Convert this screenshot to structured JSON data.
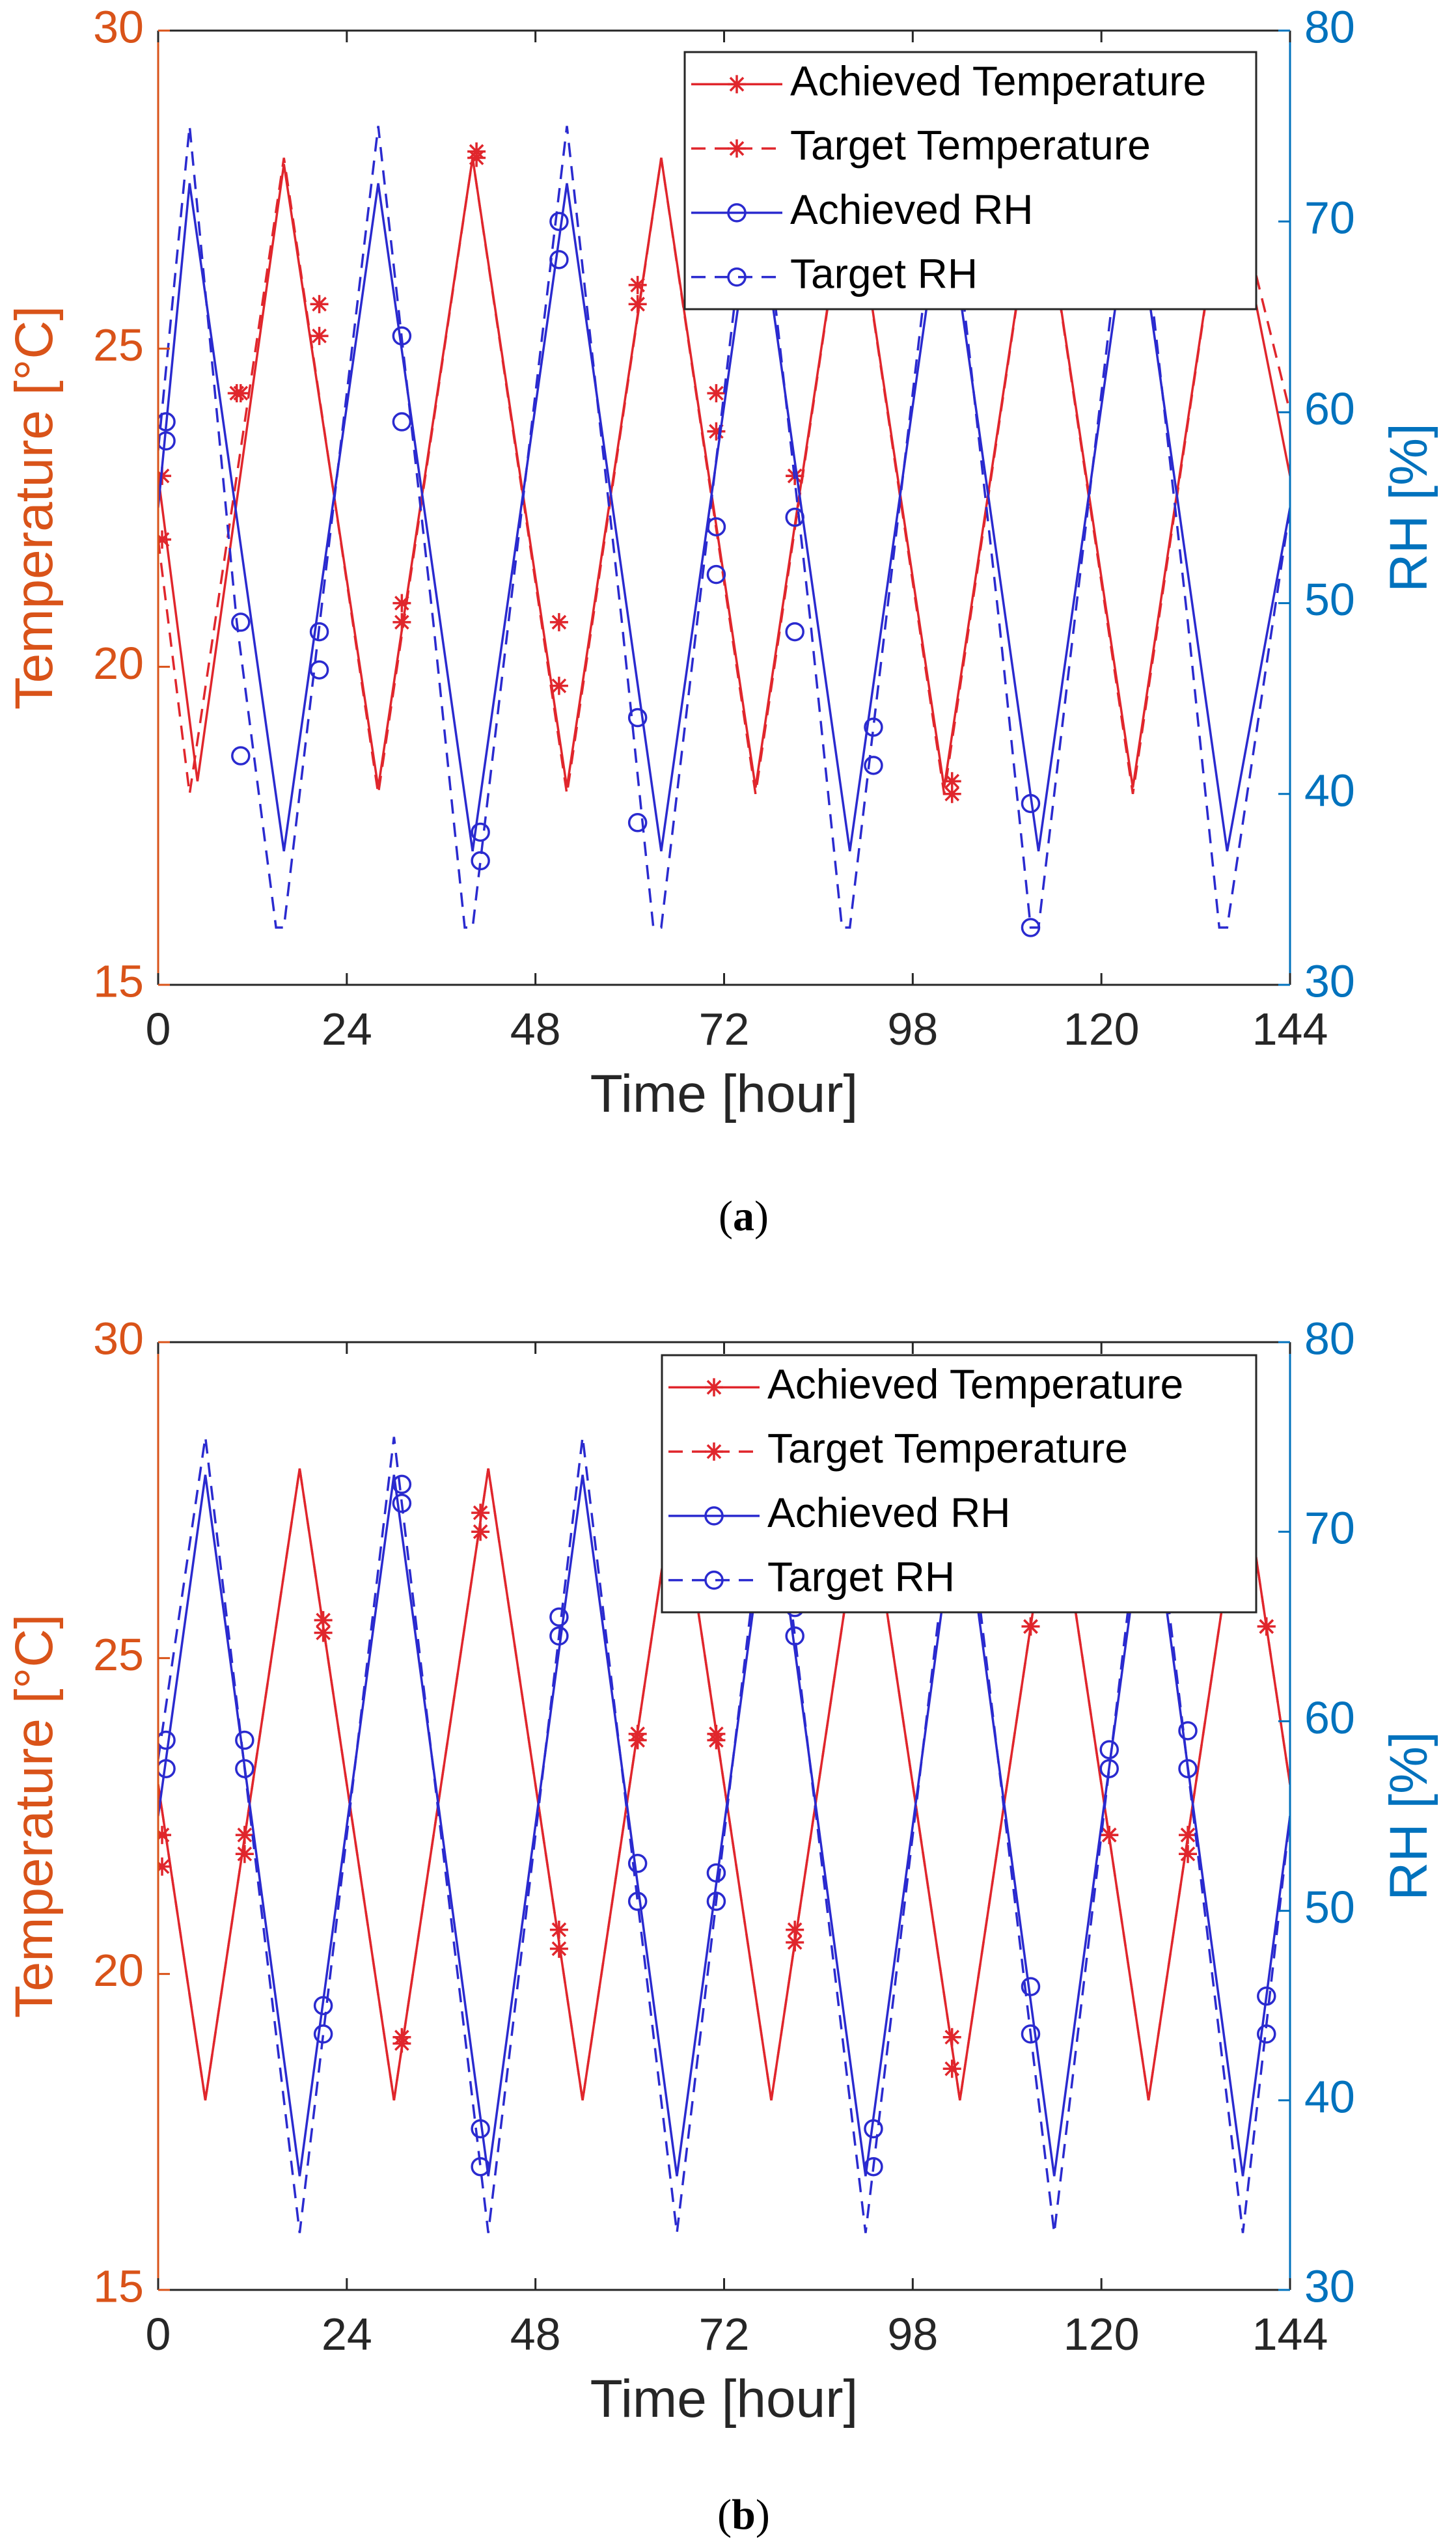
{
  "colors": {
    "left_axis": "#D95319",
    "right_axis": "#0072BD",
    "temperature": "#E0262C",
    "rh": "#2A2ACF"
  },
  "chart_data": [
    {
      "type": "line",
      "caption": {
        "open": "(",
        "letter": "a",
        "close": ")"
      },
      "xlabel": "Time [hour]",
      "ylabel_left": "Temperature [°C]",
      "ylabel_right": "RH [%]",
      "xlim": [
        0,
        144
      ],
      "ylim_left": [
        15,
        30
      ],
      "ylim_right": [
        30,
        80
      ],
      "x_ticks": [
        "0",
        "24",
        "48",
        "72",
        "98",
        "120",
        "144"
      ],
      "y_left_ticks": [
        "15",
        "20",
        "25",
        "30"
      ],
      "y_right_ticks": [
        "30",
        "40",
        "50",
        "60",
        "70",
        "80"
      ],
      "legend": [
        "Achieved Temperature",
        "Target Temperature",
        "Achieved RH",
        "Target RH"
      ],
      "series": [
        {
          "name": "Achieved Temperature",
          "axis": "left",
          "style": "solid",
          "marker": "star",
          "x": [
            0,
            5,
            16,
            28,
            40,
            52,
            64,
            76,
            88,
            100,
            112,
            124,
            136,
            144
          ],
          "y": [
            23.0,
            18.2,
            27.9,
            18.1,
            28.0,
            18.1,
            28.0,
            18.1,
            28.0,
            18.1,
            28.0,
            18.1,
            28.0,
            23.0
          ],
          "marker_x": [
            0.5,
            10.5,
            20.5,
            31,
            40.5,
            51,
            61,
            71,
            81,
            101
          ],
          "marker_y": [
            22.0,
            24.3,
            25.7,
            21.0,
            28.0,
            20.7,
            26.0,
            24.3,
            23.0,
            18.2
          ]
        },
        {
          "name": "Target Temperature",
          "axis": "left",
          "style": "dashed",
          "marker": "star",
          "x": [
            0,
            4,
            16,
            28,
            40,
            52,
            64,
            76,
            88,
            100,
            112,
            124,
            136,
            144
          ],
          "y": [
            22.0,
            18.0,
            28.0,
            18.0,
            28.0,
            18.0,
            28.0,
            18.0,
            28.0,
            18.0,
            28.0,
            18.0,
            28.0,
            24.0
          ],
          "marker_x": [
            0.5,
            10,
            20.5,
            31,
            40.5,
            51,
            61,
            71,
            81,
            101
          ],
          "marker_y": [
            23.0,
            24.3,
            25.2,
            20.7,
            28.1,
            19.7,
            25.7,
            23.7,
            23.0,
            18.0
          ]
        },
        {
          "name": "Achieved RH",
          "axis": "right",
          "style": "solid",
          "marker": "circle",
          "x": [
            0,
            4,
            16,
            28,
            40,
            52,
            64,
            76,
            88,
            100,
            112,
            124,
            136,
            144
          ],
          "y": [
            55,
            72,
            37,
            72,
            37,
            72,
            37,
            72,
            37,
            72,
            37,
            72,
            37,
            55
          ],
          "marker_x": [
            1,
            10.5,
            20.5,
            31,
            41,
            51,
            61,
            71,
            81,
            91,
            111
          ],
          "marker_y": [
            59.5,
            49,
            48.5,
            64,
            38,
            70,
            44,
            54,
            54.5,
            43.5,
            39.5
          ]
        },
        {
          "name": "Target RH",
          "axis": "right",
          "style": "dashed",
          "marker": "circle",
          "x": [
            0,
            4,
            10,
            15,
            16,
            28,
            35,
            39,
            40,
            52,
            59,
            63,
            64,
            76,
            83,
            87,
            88,
            100,
            107,
            111,
            112,
            124,
            131,
            135,
            136,
            144
          ],
          "y": [
            58,
            75,
            49,
            33,
            33,
            75,
            49,
            33,
            33,
            75,
            49,
            33,
            33,
            75,
            49,
            33,
            33,
            75,
            49,
            33,
            33,
            75,
            49,
            33,
            33,
            55
          ],
          "marker_x": [
            1,
            10.5,
            20.5,
            31,
            41,
            51,
            61,
            71,
            81,
            91,
            111
          ],
          "marker_y": [
            58.5,
            42,
            46.5,
            59.5,
            36.5,
            68,
            38.5,
            51.5,
            48.5,
            41.5,
            33
          ]
        }
      ]
    },
    {
      "type": "line",
      "caption": {
        "open": "(",
        "letter": "b",
        "close": ")"
      },
      "xlabel": "Time [hour]",
      "ylabel_left": "Temperature [°C]",
      "ylabel_right": "RH [%]",
      "xlim": [
        0,
        144
      ],
      "ylim_left": [
        15,
        30
      ],
      "ylim_right": [
        30,
        80
      ],
      "x_ticks": [
        "0",
        "24",
        "48",
        "72",
        "98",
        "120",
        "144"
      ],
      "y_left_ticks": [
        "15",
        "20",
        "25",
        "30"
      ],
      "y_right_ticks": [
        "30",
        "40",
        "50",
        "60",
        "70",
        "80"
      ],
      "legend": [
        "Achieved Temperature",
        "Target Temperature",
        "Achieved RH",
        "Target RH"
      ],
      "series": [
        {
          "name": "Achieved Temperature",
          "axis": "left",
          "style": "solid",
          "marker": "star",
          "x": [
            0,
            6,
            18,
            30,
            42,
            54,
            66,
            78,
            90,
            102,
            114,
            126,
            138,
            144
          ],
          "y": [
            23.0,
            18.0,
            28.0,
            18.0,
            28.0,
            18.0,
            28.0,
            18.0,
            28.0,
            18.0,
            28.0,
            18.0,
            28.0,
            23.0
          ],
          "marker_x": [
            0.5,
            11,
            21,
            31,
            41,
            51,
            61,
            71,
            81,
            101,
            111,
            121,
            131,
            141
          ],
          "marker_y": [
            22.2,
            22.2,
            25.6,
            19.0,
            27.3,
            20.7,
            23.8,
            23.8,
            20.7,
            19.0,
            25.5,
            22.2,
            22.2,
            25.5
          ]
        },
        {
          "name": "Target Temperature",
          "axis": "left",
          "style": "dashed",
          "marker": "star",
          "x": [
            0,
            6,
            18,
            30,
            42,
            54,
            66,
            78,
            90,
            102,
            114,
            126,
            138,
            144
          ],
          "y": [
            23.0,
            18.0,
            28.0,
            18.0,
            28.0,
            18.0,
            28.0,
            18.0,
            28.0,
            18.0,
            28.0,
            18.0,
            28.0,
            23.0
          ],
          "marker_x": [
            0.5,
            11,
            21,
            31,
            41,
            51,
            61,
            71,
            81,
            101,
            111,
            121,
            131,
            141
          ],
          "marker_y": [
            21.7,
            21.9,
            25.4,
            18.9,
            27.0,
            20.4,
            23.7,
            23.7,
            20.5,
            18.5,
            25.5,
            22.2,
            21.9,
            25.5
          ]
        },
        {
          "name": "Achieved RH",
          "axis": "right",
          "style": "solid",
          "marker": "circle",
          "x": [
            0,
            6,
            18,
            30,
            42,
            54,
            66,
            78,
            90,
            102,
            114,
            126,
            138,
            144
          ],
          "y": [
            55,
            73,
            36,
            73,
            36,
            73,
            36,
            73,
            36,
            73,
            36,
            73,
            36,
            55
          ],
          "marker_x": [
            1,
            11,
            21,
            31,
            41,
            51,
            61,
            71,
            81,
            91,
            111,
            121,
            131,
            141
          ],
          "marker_y": [
            59,
            59,
            45,
            72.5,
            38.5,
            65.5,
            52.5,
            52,
            66,
            38.5,
            46,
            58.5,
            59.5,
            45.5
          ]
        },
        {
          "name": "Target RH",
          "axis": "right",
          "style": "dashed",
          "marker": "circle",
          "x": [
            0,
            6,
            18,
            30,
            42,
            54,
            66,
            78,
            90,
            102,
            114,
            126,
            138,
            144
          ],
          "y": [
            58,
            75,
            33,
            75,
            33,
            75,
            33,
            75,
            33,
            75,
            33,
            75,
            33,
            55
          ],
          "marker_x": [
            1,
            11,
            21,
            31,
            41,
            51,
            61,
            71,
            81,
            91,
            111,
            121,
            131,
            141
          ],
          "marker_y": [
            57.5,
            57.5,
            43.5,
            71.5,
            36.5,
            64.5,
            50.5,
            50.5,
            64.5,
            36.5,
            43.5,
            57.5,
            57.5,
            43.5
          ]
        }
      ]
    }
  ]
}
